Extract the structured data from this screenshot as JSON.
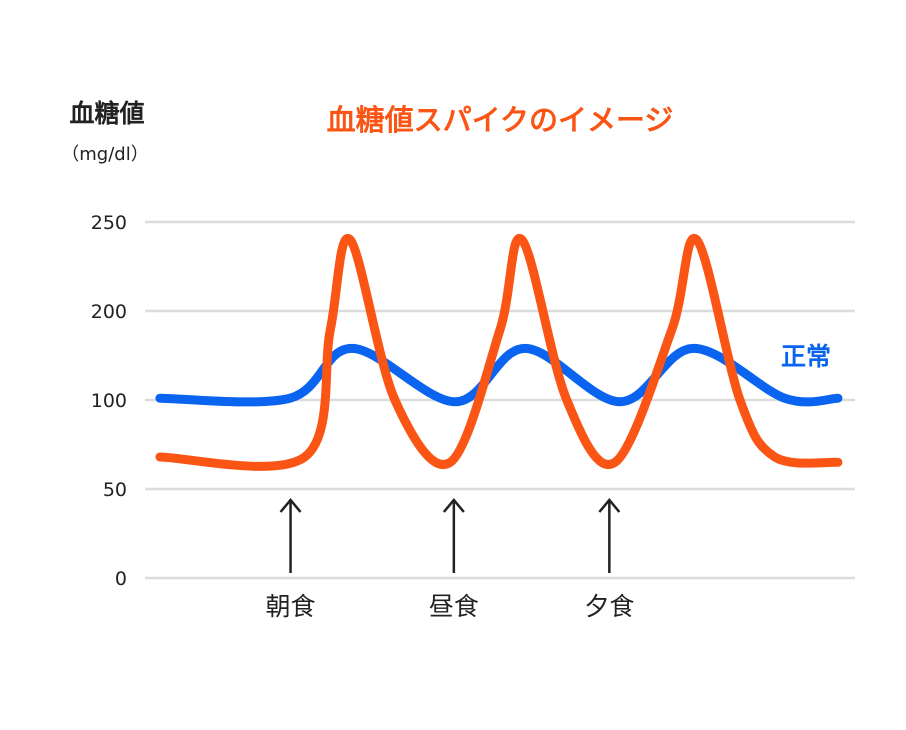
{
  "chart_data": {
    "type": "line",
    "title": "血糖値スパイクのイメージ",
    "ylabel": "血糖値",
    "yunit": "（mg/dl）",
    "yticks": [
      0,
      50,
      100,
      200,
      250
    ],
    "ylim": [
      0,
      250
    ],
    "grid": true,
    "annotations": [
      {
        "label": "朝食",
        "x": 20.5
      },
      {
        "label": "昼食",
        "x": 43.5
      },
      {
        "label": "夕食",
        "x": 65.4
      }
    ],
    "series": [
      {
        "name": "",
        "color": "#fa5514",
        "points": [
          [
            2.1,
            68
          ],
          [
            22.5,
            68
          ],
          [
            26.1,
            179
          ],
          [
            28.9,
            240
          ],
          [
            35.2,
            100
          ],
          [
            43,
            65
          ],
          [
            50,
            179
          ],
          [
            53.1,
            240
          ],
          [
            59.4,
            100
          ],
          [
            66.2,
            65
          ],
          [
            74.2,
            179
          ],
          [
            77.7,
            240
          ],
          [
            83.8,
            100
          ],
          [
            88.7,
            68
          ],
          [
            97.6,
            65
          ]
        ]
      },
      {
        "name": "正常",
        "color": "#0a64f0",
        "points": [
          [
            2.1,
            102
          ],
          [
            20.4,
            102
          ],
          [
            29.2,
            158
          ],
          [
            43.7,
            99
          ],
          [
            53.5,
            158
          ],
          [
            66.9,
            99
          ],
          [
            77.2,
            158
          ],
          [
            90.1,
            102
          ],
          [
            97.6,
            102
          ]
        ]
      }
    ]
  }
}
